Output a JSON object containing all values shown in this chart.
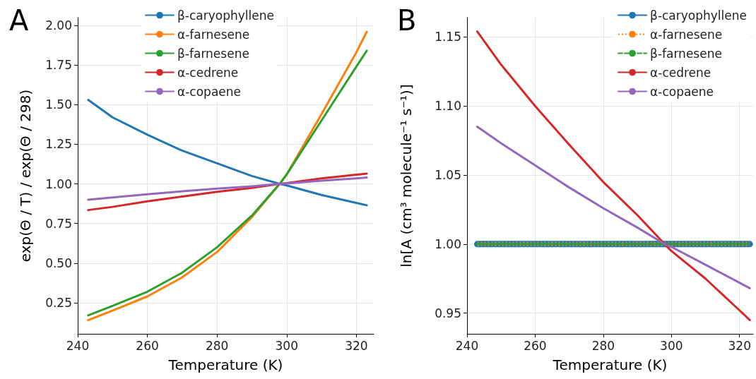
{
  "chart_data": [
    {
      "type": "line",
      "title": "A",
      "xlabel": "Temperature (K)",
      "ylabel": "exp(Θ / T) / exp(Θ / 298)",
      "xlim": [
        240,
        325
      ],
      "xticks": [
        240,
        260,
        280,
        300,
        320
      ],
      "ylim": [
        0.054,
        2.049
      ],
      "yticks": [
        {
          "value": 0.25,
          "label": "0.25"
        },
        {
          "value": 0.5,
          "label": "0.50"
        },
        {
          "value": 0.75,
          "label": "0.75"
        },
        {
          "value": 1,
          "label": "1.00"
        },
        {
          "value": 1.25,
          "label": "1.25"
        },
        {
          "value": 1.5,
          "label": "1.50"
        },
        {
          "value": 1.75,
          "label": "1.75"
        },
        {
          "value": 2,
          "label": "2.00"
        }
      ],
      "grid": true,
      "legend": "top",
      "marker": "none",
      "line_style": "solid",
      "x": [
        243,
        250,
        260,
        270,
        280,
        290,
        298,
        300,
        310,
        320,
        323
      ],
      "series": [
        {
          "name": "β-caryophyllene",
          "color": "#1f77b4",
          "values": [
            1.53,
            1.42,
            1.31,
            1.21,
            1.13,
            1.05,
            1.0,
            0.99,
            0.93,
            0.88,
            0.865
          ]
        },
        {
          "name": "α-farnesene",
          "color": "#ff7f0e",
          "values": [
            0.14,
            0.2,
            0.29,
            0.41,
            0.57,
            0.79,
            1.0,
            1.06,
            1.44,
            1.83,
            1.96
          ]
        },
        {
          "name": "β-farnesene",
          "color": "#2ca02c",
          "values": [
            0.17,
            0.23,
            0.32,
            0.44,
            0.6,
            0.8,
            1.0,
            1.06,
            1.4,
            1.74,
            1.84
          ]
        },
        {
          "name": "α-cedrene",
          "color": "#d62728",
          "values": [
            0.835,
            0.855,
            0.89,
            0.92,
            0.95,
            0.975,
            1.0,
            1.005,
            1.035,
            1.058,
            1.065
          ]
        },
        {
          "name": "α-copaene",
          "color": "#9467bd",
          "values": [
            0.9,
            0.915,
            0.935,
            0.953,
            0.97,
            0.985,
            1.0,
            1.003,
            1.02,
            1.035,
            1.04
          ]
        }
      ]
    },
    {
      "type": "line",
      "title": "B",
      "xlabel": "Temperature (K)",
      "ylabel": "ln[A (cm³ molecule⁻¹ s⁻¹)]",
      "xlim": [
        240,
        324
      ],
      "xticks": [
        240,
        260,
        280,
        300,
        320
      ],
      "ylim": [
        0.935,
        1.164
      ],
      "yticks": [
        {
          "value": 0.95,
          "label": "0.95"
        },
        {
          "value": 1,
          "label": "1.00"
        },
        {
          "value": 1.05,
          "label": "1.05"
        },
        {
          "value": 1.1,
          "label": "1.10"
        },
        {
          "value": 1.15,
          "label": "1.15"
        }
      ],
      "grid": true,
      "legend": "top right",
      "marker": "none",
      "x": [
        243,
        250,
        260,
        270,
        280,
        290,
        298,
        300,
        310,
        320,
        323
      ],
      "series": [
        {
          "name": "β-caryophyllene",
          "color": "#1f77b4",
          "line_style": "solid",
          "values": [
            1,
            1,
            1,
            1,
            1,
            1,
            1,
            1,
            1,
            1,
            1
          ]
        },
        {
          "name": "α-farnesene",
          "color": "#ff7f0e",
          "line_style": "dotted",
          "values": [
            1,
            1,
            1,
            1,
            1,
            1,
            1,
            1,
            1,
            1,
            1
          ]
        },
        {
          "name": "β-farnesene",
          "color": "#2ca02c",
          "line_style": "dashed",
          "values": [
            1,
            1,
            1,
            1,
            1,
            1,
            1,
            1,
            1,
            1,
            1
          ]
        },
        {
          "name": "α-cedrene",
          "color": "#d62728",
          "line_style": "solid",
          "values": [
            1.154,
            1.13,
            1.1,
            1.072,
            1.045,
            1.021,
            1.0,
            0.995,
            0.975,
            0.952,
            0.945
          ]
        },
        {
          "name": "α-copaene",
          "color": "#9467bd",
          "line_style": "solid",
          "values": [
            1.085,
            1.073,
            1.057,
            1.041,
            1.026,
            1.012,
            1.0,
            0.998,
            0.985,
            0.972,
            0.968
          ]
        }
      ]
    }
  ]
}
